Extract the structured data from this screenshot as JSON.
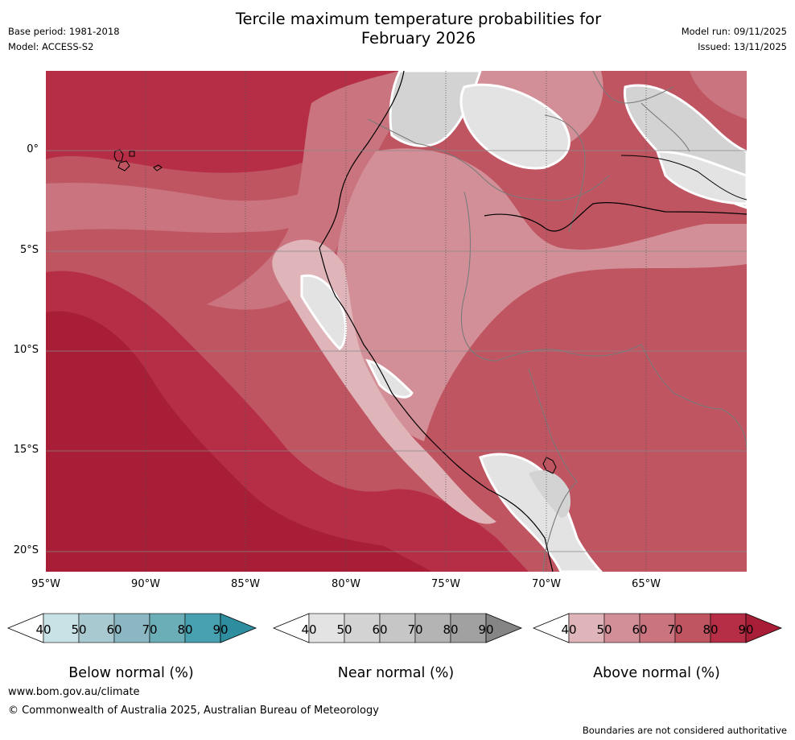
{
  "header": {
    "title_line1": "Tercile maximum temperature probabilities for",
    "title_line2": "February 2026",
    "base_period": "Base period: 1981-2018",
    "model": "Model: ACCESS-S2",
    "model_run": "Model run: 09/11/2025",
    "issued": "Issued: 13/11/2025"
  },
  "map": {
    "lat_labels": [
      "0°",
      "5°S",
      "10°S",
      "15°S",
      "20°S"
    ],
    "lon_labels": [
      "95°W",
      "90°W",
      "85°W",
      "80°W",
      "75°W",
      "70°W",
      "65°W"
    ]
  },
  "colorbars": {
    "below": {
      "label": "Below normal (%)",
      "ticks": [
        "40",
        "50",
        "60",
        "70",
        "80",
        "90"
      ],
      "colors": [
        "#ffffff",
        "#c9e2e6",
        "#a8c9cf",
        "#8ab7c1",
        "#6caeb8",
        "#47a1b0",
        "#2e8ea0"
      ]
    },
    "near": {
      "label": "Near normal (%)",
      "ticks": [
        "40",
        "50",
        "60",
        "70",
        "80",
        "90"
      ],
      "colors": [
        "#ffffff",
        "#e3e3e3",
        "#d3d3d3",
        "#c6c6c6",
        "#b4b4b4",
        "#a1a1a1",
        "#858585"
      ]
    },
    "above": {
      "label": "Above normal (%)",
      "ticks": [
        "40",
        "50",
        "60",
        "70",
        "80",
        "90"
      ],
      "colors": [
        "#ffffff",
        "#dfb5ba",
        "#d38f97",
        "#c9747e",
        "#c05562",
        "#b52e45",
        "#a81e36"
      ]
    }
  },
  "footer": {
    "url": "www.bom.gov.au/climate",
    "copyright": "© Commonwealth of Australia 2025, Australian Bureau of Meteorology",
    "disclaimer": "Boundaries are not considered authoritative"
  }
}
